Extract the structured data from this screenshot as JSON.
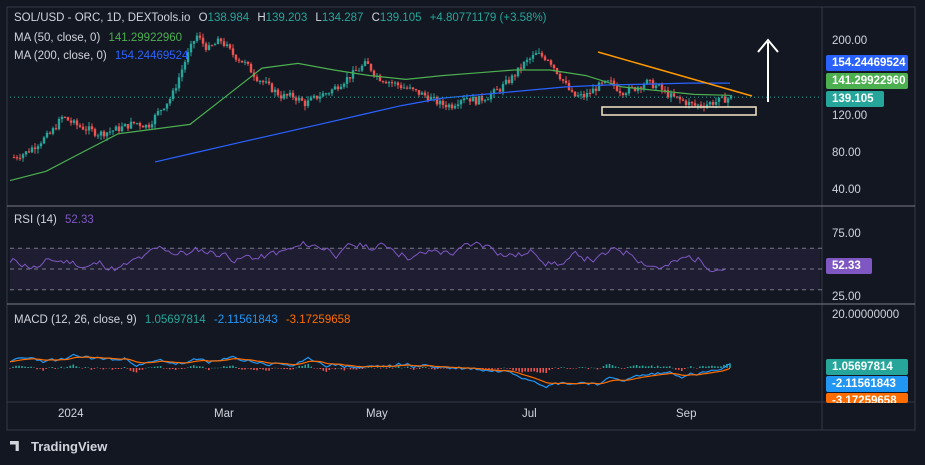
{
  "header": {
    "symbol": "SOL/USD - ORC, 1D, DEXTools.io",
    "o_label": "O",
    "o": "138.984",
    "h_label": "H",
    "h": "139.203",
    "l_label": "L",
    "l": "134.287",
    "c_label": "C",
    "c": "139.105",
    "change": "+4.80771179 (+3.58%)"
  },
  "ma50": {
    "label": "MA (50, close, 0)",
    "value": "141.29922960",
    "color": "#4caf50"
  },
  "ma200": {
    "label": "MA (200, close, 0)",
    "value": "154.24469524",
    "color": "#2962ff"
  },
  "rsi": {
    "label": "RSI (14)",
    "value": "52.33",
    "color": "#7e57c2"
  },
  "macd": {
    "label": "MACD (12, 26, close, 9)",
    "hist_value": "1.05697814",
    "macd_value": "-2.11561843",
    "signal_value": "-3.17259658"
  },
  "price_axis": [
    "200.00",
    "120.00",
    "80.00",
    "40.00"
  ],
  "price_tags": {
    "ma200": "154.24469524",
    "ma50": "141.29922960",
    "close": "139.105"
  },
  "rsi_axis": [
    "75.00",
    "25.00"
  ],
  "rsi_tag": "52.33",
  "macd_axis": [
    "20.00000000"
  ],
  "macd_tags": [
    "1.05697814",
    "-2.11561843",
    "-3.17259658"
  ],
  "time_axis": [
    "2024",
    "Mar",
    "May",
    "Jul",
    "Sep"
  ],
  "brand": "TradingView",
  "colors": {
    "up": "#26a69a",
    "down": "#ef5350",
    "bg": "#131722",
    "trend": "#ff9800"
  },
  "chart_data": {
    "type": "line",
    "x_range": [
      "2023-12",
      "2024-09"
    ],
    "ylim": [
      40,
      210
    ],
    "series": [
      {
        "name": "MA (50, close, 0)",
        "values": [
          50,
          60,
          80,
          100,
          105,
          110,
          140,
          170,
          175,
          168,
          162,
          158,
          162,
          165,
          168,
          168,
          162,
          150,
          146,
          142,
          141
        ]
      },
      {
        "name": "MA (200, close, 0)",
        "values": [
          70,
          80,
          90,
          100,
          110,
          120,
          130,
          138,
          142,
          146,
          150,
          152,
          153,
          154,
          154
        ]
      }
    ],
    "price_path": [
      75,
      80,
      90,
      100,
      118,
      110,
      105,
      100,
      103,
      107,
      112,
      108,
      125,
      140,
      175,
      205,
      190,
      200,
      185,
      175,
      160,
      150,
      140,
      140,
      132,
      140,
      145,
      155,
      165,
      175,
      160,
      155,
      150,
      145,
      140,
      132,
      130,
      140,
      135,
      140,
      148,
      160,
      175,
      185,
      180,
      160,
      140,
      140,
      150,
      155,
      145,
      148,
      155,
      150,
      140,
      135,
      130,
      132,
      135,
      139
    ],
    "rsi_range": [
      25,
      75
    ],
    "macd_range": [
      -20,
      20
    ]
  }
}
